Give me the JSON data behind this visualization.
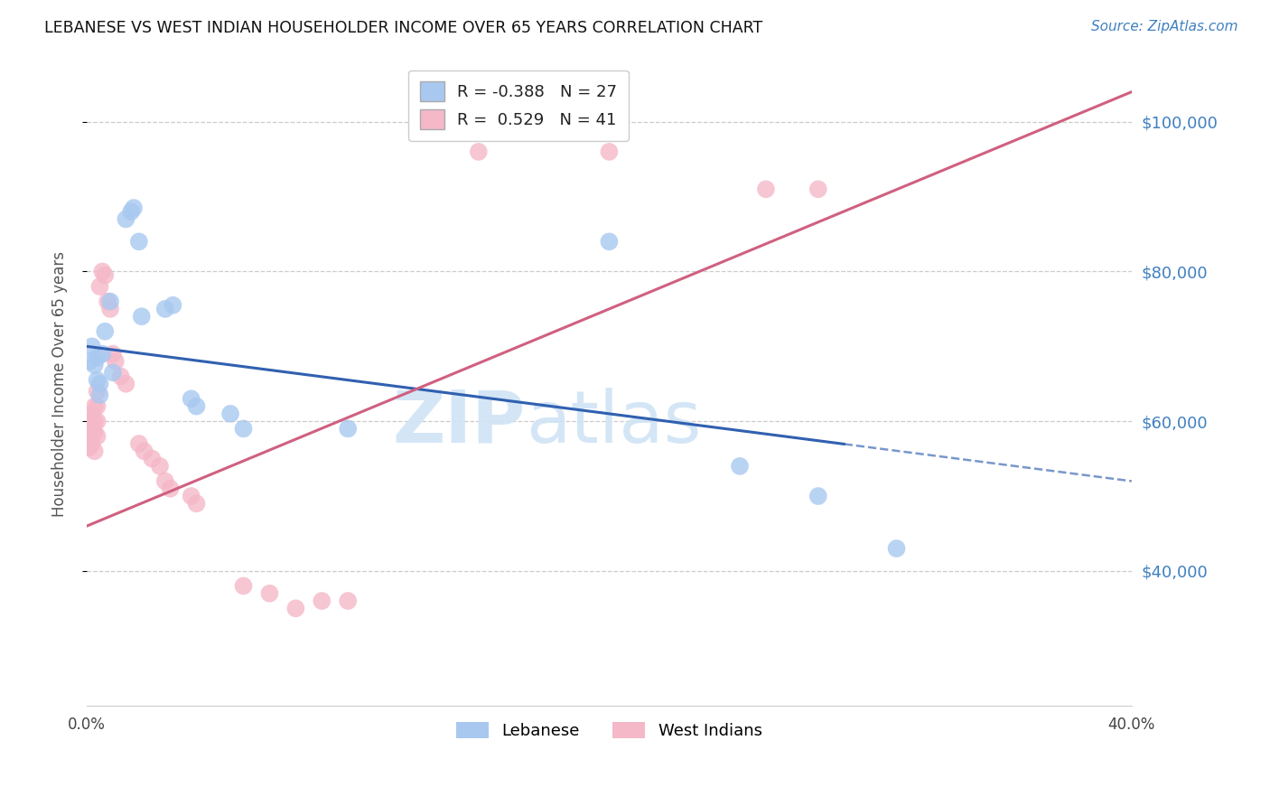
{
  "title": "LEBANESE VS WEST INDIAN HOUSEHOLDER INCOME OVER 65 YEARS CORRELATION CHART",
  "source": "Source: ZipAtlas.com",
  "ylabel": "Householder Income Over 65 years",
  "legend_label_blue": "Lebanese",
  "legend_label_pink": "West Indians",
  "r_blue": -0.388,
  "n_blue": 27,
  "r_pink": 0.529,
  "n_pink": 41,
  "xlim": [
    0.0,
    0.4
  ],
  "ylim": [
    22000,
    108000
  ],
  "yticks": [
    40000,
    60000,
    80000,
    100000
  ],
  "ytick_labels": [
    "$40,000",
    "$60,000",
    "$80,000",
    "$100,000"
  ],
  "xticks": [
    0.0,
    0.1,
    0.2,
    0.3,
    0.4
  ],
  "xtick_labels": [
    "0.0%",
    "",
    "",
    "",
    "40.0%"
  ],
  "color_blue": "#a8c8f0",
  "color_pink": "#f5b8c8",
  "color_blue_line": "#3060b0",
  "color_pink_line": "#d06080",
  "color_blue_right_axis": "#4080c0",
  "watermark_color": "#d0e4f5",
  "blue_points": [
    [
      0.001,
      68000
    ],
    [
      0.002,
      70000
    ],
    [
      0.003,
      67500
    ],
    [
      0.004,
      65500
    ],
    [
      0.004,
      68500
    ],
    [
      0.005,
      65000
    ],
    [
      0.005,
      63500
    ],
    [
      0.006,
      69000
    ],
    [
      0.007,
      72000
    ],
    [
      0.009,
      76000
    ],
    [
      0.01,
      66500
    ],
    [
      0.015,
      87000
    ],
    [
      0.017,
      88000
    ],
    [
      0.018,
      88500
    ],
    [
      0.02,
      84000
    ],
    [
      0.021,
      74000
    ],
    [
      0.03,
      75000
    ],
    [
      0.033,
      75500
    ],
    [
      0.04,
      63000
    ],
    [
      0.042,
      62000
    ],
    [
      0.055,
      61000
    ],
    [
      0.06,
      59000
    ],
    [
      0.1,
      59000
    ],
    [
      0.2,
      84000
    ],
    [
      0.25,
      54000
    ],
    [
      0.28,
      50000
    ],
    [
      0.31,
      43000
    ]
  ],
  "pink_points": [
    [
      0.001,
      57000
    ],
    [
      0.001,
      60000
    ],
    [
      0.001,
      58000
    ],
    [
      0.001,
      56500
    ],
    [
      0.002,
      61000
    ],
    [
      0.002,
      59000
    ],
    [
      0.002,
      57000
    ],
    [
      0.003,
      62000
    ],
    [
      0.003,
      60000
    ],
    [
      0.003,
      58500
    ],
    [
      0.003,
      56000
    ],
    [
      0.004,
      64000
    ],
    [
      0.004,
      62000
    ],
    [
      0.004,
      60000
    ],
    [
      0.004,
      58000
    ],
    [
      0.005,
      78000
    ],
    [
      0.006,
      80000
    ],
    [
      0.007,
      79500
    ],
    [
      0.008,
      76000
    ],
    [
      0.009,
      75000
    ],
    [
      0.01,
      69000
    ],
    [
      0.011,
      68000
    ],
    [
      0.013,
      66000
    ],
    [
      0.015,
      65000
    ],
    [
      0.02,
      57000
    ],
    [
      0.022,
      56000
    ],
    [
      0.025,
      55000
    ],
    [
      0.028,
      54000
    ],
    [
      0.03,
      52000
    ],
    [
      0.032,
      51000
    ],
    [
      0.04,
      50000
    ],
    [
      0.042,
      49000
    ],
    [
      0.06,
      38000
    ],
    [
      0.07,
      37000
    ],
    [
      0.08,
      35000
    ],
    [
      0.09,
      36000
    ],
    [
      0.1,
      36000
    ],
    [
      0.15,
      96000
    ],
    [
      0.2,
      96000
    ],
    [
      0.26,
      91000
    ],
    [
      0.28,
      91000
    ]
  ],
  "blue_line_x0": 0.0,
  "blue_line_x1": 0.4,
  "blue_line_y0": 70000,
  "blue_line_y1": 52000,
  "blue_line_solid_end": 0.29,
  "pink_line_x0": 0.0,
  "pink_line_x1": 0.4,
  "pink_line_y0": 46000,
  "pink_line_y1": 104000
}
